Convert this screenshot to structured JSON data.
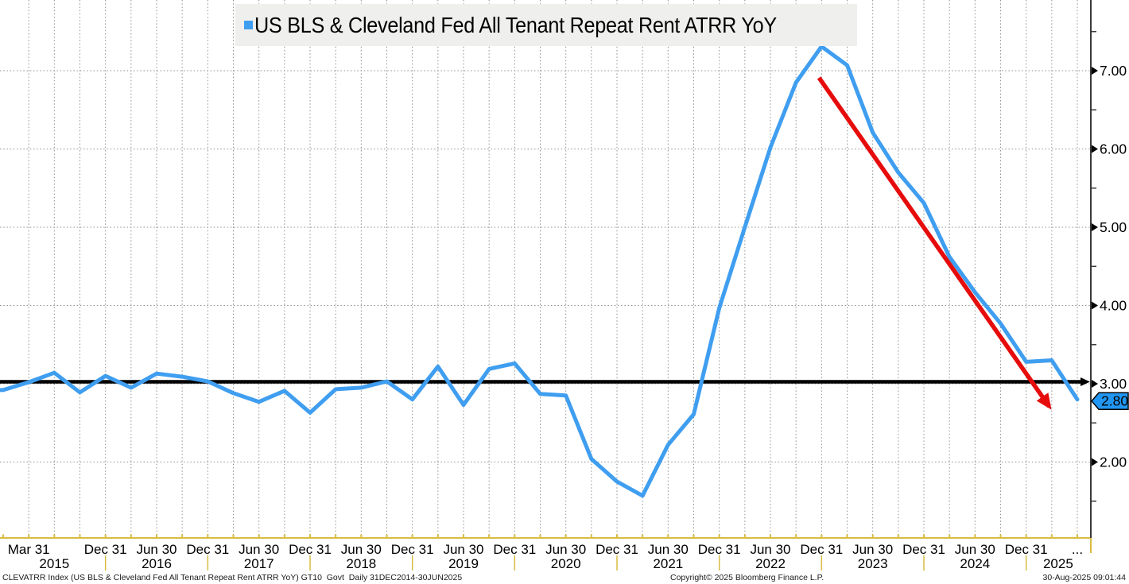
{
  "title": {
    "legend_label": "US BLS & Cleveland Fed All Tenant Repeat Rent ATRR YoY"
  },
  "footer": {
    "left": "CLEVATRR Index (US BLS & Cleveland Fed All Tenant Repeat Rent ATRR YoY) GT10  Govt  Daily 31DEC2014-30JUN2025",
    "copyright": "Copyright© 2025 Bloomberg Finance L.P.",
    "timestamp": "30-Aug-2025 09:01:44"
  },
  "colors": {
    "series_blue": "#3f9ef0",
    "last_value_tag_blue": "#2196f3",
    "annotation_red": "#e60c0c",
    "reference_black": "#000000",
    "axis_gold": "#d8bc42",
    "axis_dark": "#3a3a3a",
    "grid_gray": "#8f8f8f",
    "title_bg": "#efefed"
  },
  "chart_data": {
    "type": "line",
    "title": "US BLS & Cleveland Fed All Tenant Repeat Rent ATRR YoY",
    "x": [
      "2014-12-31",
      "2015-03-31",
      "2015-06-30",
      "2015-09-30",
      "2015-12-31",
      "2016-03-31",
      "2016-06-30",
      "2016-09-30",
      "2016-12-31",
      "2017-03-31",
      "2017-06-30",
      "2017-09-30",
      "2017-12-31",
      "2018-03-31",
      "2018-06-30",
      "2018-09-30",
      "2018-12-31",
      "2019-03-31",
      "2019-06-30",
      "2019-09-30",
      "2019-12-31",
      "2020-03-31",
      "2020-06-30",
      "2020-09-30",
      "2020-12-31",
      "2021-03-31",
      "2021-06-30",
      "2021-09-30",
      "2021-12-31",
      "2022-03-31",
      "2022-06-30",
      "2022-09-30",
      "2022-12-31",
      "2023-03-31",
      "2023-06-30",
      "2023-09-30",
      "2023-12-31",
      "2024-03-31",
      "2024-06-30",
      "2024-09-30",
      "2024-12-31",
      "2025-03-31",
      "2025-06-30"
    ],
    "series": [
      {
        "name": "US BLS & Cleveland Fed All Tenant Repeat Rent ATRR YoY",
        "values": [
          2.92,
          3.02,
          3.14,
          2.89,
          3.1,
          2.95,
          3.13,
          3.09,
          3.03,
          2.88,
          2.77,
          2.91,
          2.63,
          2.93,
          2.95,
          3.03,
          2.8,
          3.22,
          2.73,
          3.19,
          3.26,
          2.87,
          2.85,
          2.04,
          1.75,
          1.57,
          2.22,
          2.61,
          3.97,
          5.0,
          6.02,
          6.85,
          7.31,
          7.07,
          6.21,
          5.7,
          5.31,
          4.62,
          4.17,
          3.77,
          3.28,
          3.3,
          2.8
        ]
      }
    ],
    "ylim": [
      1.03,
      7.9
    ],
    "grid": true,
    "y_ticks": [
      {
        "label": "7.00",
        "v": 7
      },
      {
        "label": "6.00",
        "v": 6
      },
      {
        "label": "5.00",
        "v": 5
      },
      {
        "label": "4.00",
        "v": 4
      },
      {
        "label": "3.00",
        "v": 3
      },
      {
        "label": "2.00",
        "v": 2
      }
    ],
    "y_minor_ticks": [
      1.5,
      2.5,
      3.5,
      4.5,
      5.5,
      6.5,
      7.5
    ],
    "x_ticks": [
      {
        "label": "Mar 31",
        "q": 1
      },
      {
        "label": "Dec 31",
        "q": 4
      },
      {
        "label": "Jun 30",
        "q": 6
      },
      {
        "label": "Dec 31",
        "q": 8
      },
      {
        "label": "Jun 30",
        "q": 10
      },
      {
        "label": "Dec 31",
        "q": 12
      },
      {
        "label": "Jun 30",
        "q": 14
      },
      {
        "label": "Dec 31",
        "q": 16
      },
      {
        "label": "Jun 30",
        "q": 18
      },
      {
        "label": "Dec 31",
        "q": 20
      },
      {
        "label": "Jun 30",
        "q": 22
      },
      {
        "label": "Dec 31",
        "q": 24
      },
      {
        "label": "Jun 30",
        "q": 26
      },
      {
        "label": "Dec 31",
        "q": 28
      },
      {
        "label": "Jun 30",
        "q": 30
      },
      {
        "label": "Dec 31",
        "q": 32
      },
      {
        "label": "Jun 30",
        "q": 34
      },
      {
        "label": "Dec 31",
        "q": 36
      },
      {
        "label": "Jun 30",
        "q": 38
      },
      {
        "label": "Dec 31",
        "q": 40
      },
      {
        "label": "...",
        "q": 42
      }
    ],
    "year_labels": [
      {
        "label": "2015",
        "q": 2
      },
      {
        "label": "2016",
        "q": 6
      },
      {
        "label": "2017",
        "q": 10
      },
      {
        "label": "2018",
        "q": 14
      },
      {
        "label": "2019",
        "q": 18
      },
      {
        "label": "2020",
        "q": 22
      },
      {
        "label": "2021",
        "q": 26
      },
      {
        "label": "2022",
        "q": 30
      },
      {
        "label": "2023",
        "q": 34
      },
      {
        "label": "2024",
        "q": 38
      },
      {
        "label": "2025",
        "q": 41.25
      }
    ],
    "year_separators_q": [
      4,
      8,
      12,
      16,
      20,
      24,
      28,
      32,
      36,
      40
    ],
    "reference_line": {
      "value": 3.0
    },
    "annotation_arrow": {
      "from_q": 31.9,
      "from_v": 6.91,
      "to_q": 40.9,
      "to_v": 2.71
    },
    "last_value": {
      "label": "2.80",
      "v": 2.8
    },
    "legend_position": "top"
  }
}
